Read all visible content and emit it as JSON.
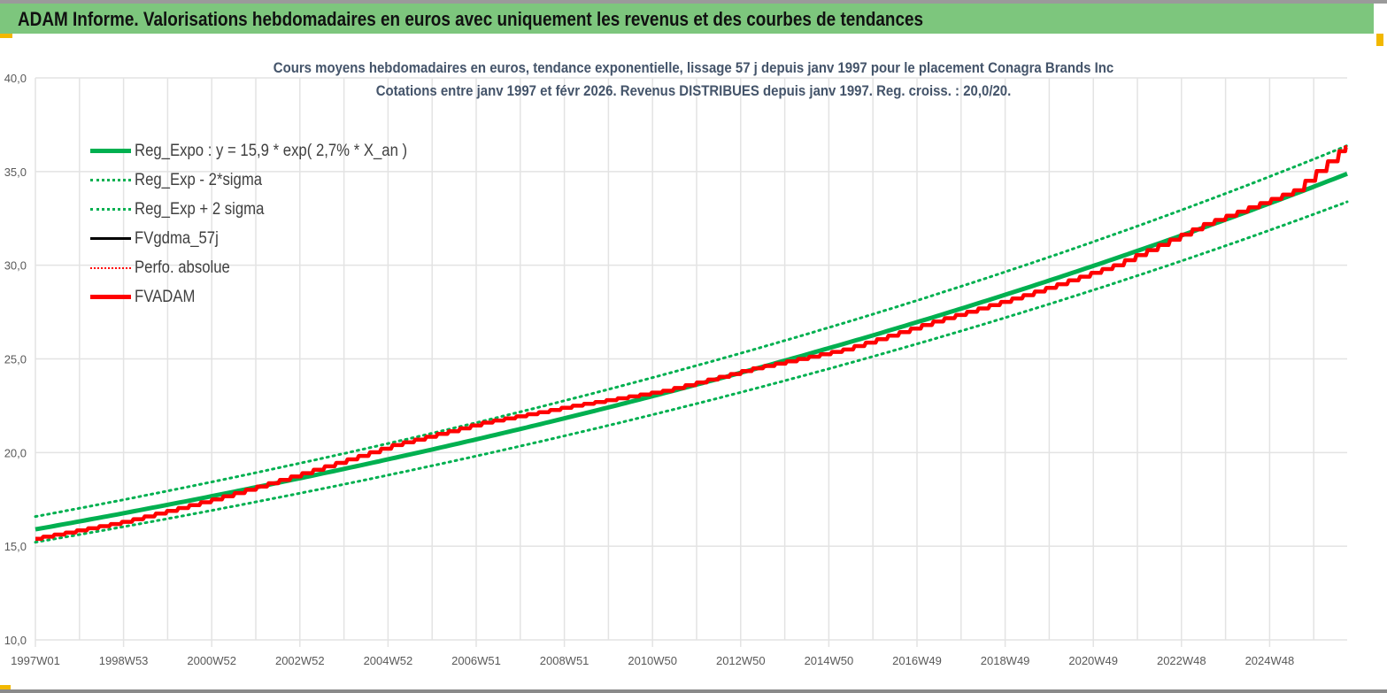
{
  "banner": {
    "title": "ADAM Informe. Valorisations hebdomadaires en euros avec uniquement les revenus et des courbes de tendances"
  },
  "chart_data": {
    "type": "line",
    "title_lines": [
      "Cours moyens hebdomadaires en euros, tendance exponentielle, lissage 57 j depuis janv 1997 pour le placement Conagra Brands Inc",
      "Cotations entre janv 1997 et févr 2026. Revenus DISTRIBUES depuis janv 1997. Reg. croiss. : 20,0/20."
    ],
    "xlabel": "",
    "ylabel": "",
    "ylim": [
      10,
      40
    ],
    "yticks": [
      "10,0",
      "15,0",
      "20,0",
      "25,0",
      "30,0",
      "35,0",
      "40,0"
    ],
    "xticks": [
      "1997W01",
      "1998W53",
      "2000W52",
      "2002W52",
      "2004W52",
      "2006W51",
      "2008W51",
      "2010W50",
      "2012W50",
      "2014W50",
      "2016W49",
      "2018W49",
      "2020W49",
      "2022W48",
      "2024W48"
    ],
    "xrange_years": [
      1997.0,
      2026.1
    ],
    "grid": true,
    "legend_position": "top-left",
    "series": [
      {
        "name": "Reg_Expo : y = 15,9 * exp( 2,7% *  X_an )",
        "color": "#00b050",
        "style": "solid-thick",
        "formula": {
          "a": 15.9,
          "rate": 0.027
        }
      },
      {
        "name": "Reg_Exp - 2*sigma",
        "color": "#00b050",
        "style": "dotted",
        "factor": 0.957
      },
      {
        "name": "Reg_Exp + 2 sigma",
        "color": "#00b050",
        "style": "dotted",
        "factor": 1.043
      },
      {
        "name": "FVgdma_57j",
        "color": "#000000",
        "style": "solid",
        "x": [
          1997.0,
          1999.0,
          2001.0,
          2003.0,
          2005.0,
          2007.0,
          2009.0,
          2011.0,
          2013.0,
          2015.0,
          2017.0,
          2019.0,
          2021.0,
          2023.0,
          2025.0,
          2026.1
        ],
        "y": [
          15.4,
          16.3,
          17.5,
          18.9,
          20.4,
          21.6,
          22.5,
          23.3,
          24.5,
          25.5,
          27.0,
          28.4,
          30.0,
          32.2,
          34.0,
          36.3
        ]
      },
      {
        "name": "Perfo. absolue",
        "color": "#ff0000",
        "style": "dotted"
      },
      {
        "name": "FVADAM",
        "color": "#ff0000",
        "style": "solid-thick",
        "x": [
          1997.0,
          1999.0,
          2001.0,
          2003.0,
          2005.0,
          2007.0,
          2009.0,
          2011.0,
          2013.0,
          2015.0,
          2017.0,
          2019.0,
          2021.0,
          2023.0,
          2025.0,
          2026.1
        ],
        "y": [
          15.4,
          16.3,
          17.5,
          18.9,
          20.4,
          21.6,
          22.5,
          23.3,
          24.5,
          25.5,
          27.0,
          28.4,
          30.0,
          32.2,
          34.0,
          36.3
        ]
      }
    ]
  }
}
